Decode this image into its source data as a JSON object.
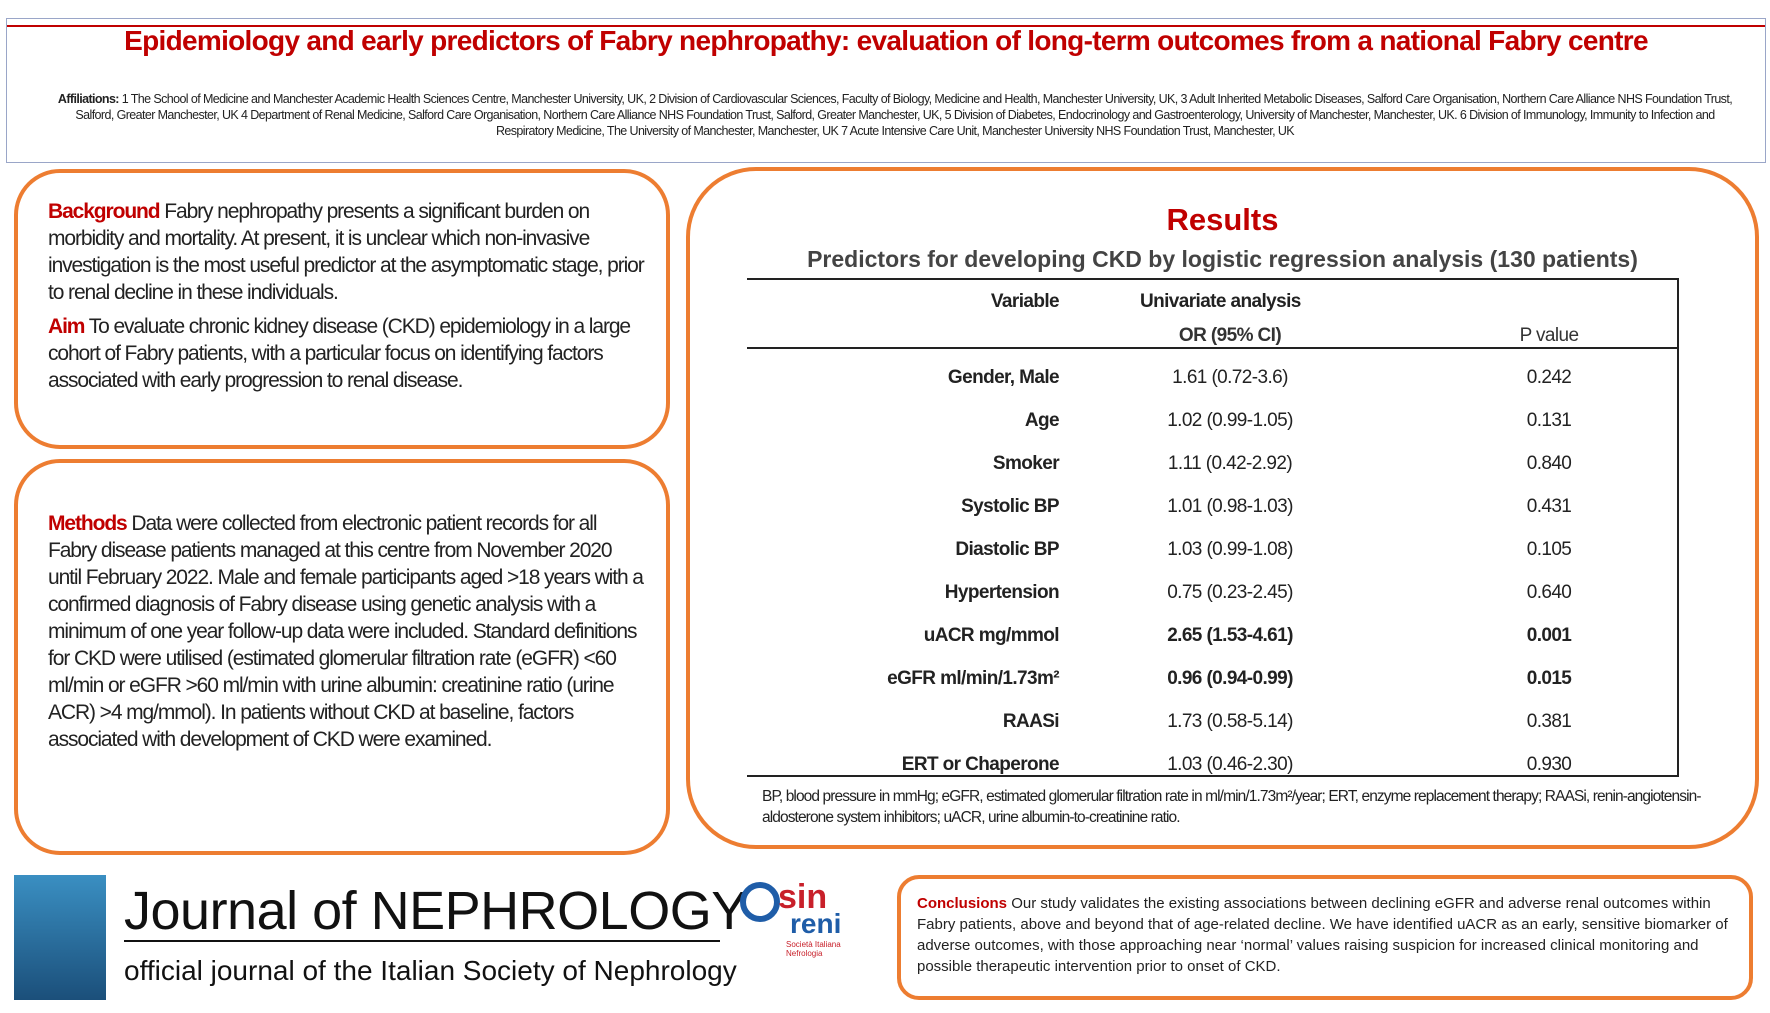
{
  "header": {
    "title": "Epidemiology and early predictors of Fabry nephropathy: evaluation of long-term outcomes from a national Fabry centre",
    "affiliations_label": "Affiliations:",
    "affiliations": "1 The School of Medicine and Manchester Academic Health Sciences Centre, Manchester University, UK, 2 Division of Cardiovascular Sciences, Faculty of Biology, Medicine and Health, Manchester University, UK, 3 Adult Inherited Metabolic Diseases, Salford Care Organisation, Northern Care Alliance NHS Foundation Trust, Salford, Greater Manchester, UK 4 Department of Renal Medicine, Salford Care Organisation, Northern Care Alliance NHS Foundation Trust, Salford, Greater Manchester, UK, 5 Division of Diabetes, Endocrinology and Gastroenterology, University of Manchester, Manchester, UK. 6 Division of Immunology, Immunity to Infection and Respiratory Medicine, The University of Manchester, Manchester, UK 7 Acute Intensive Care Unit, Manchester University NHS Foundation Trust, Manchester, UK"
  },
  "background": {
    "label": "Background",
    "text": "Fabry nephropathy presents a significant burden on morbidity and mortality. At present, it is unclear which non-invasive investigation is the most useful predictor at the asymptomatic stage, prior to renal decline in these individuals."
  },
  "aim": {
    "label": "Aim",
    "text": "To evaluate chronic kidney disease (CKD) epidemiology in a large cohort of Fabry patients, with a particular focus on identifying factors associated with early progression to renal disease."
  },
  "methods": {
    "label": "Methods",
    "text": "Data were collected from electronic patient records for all Fabry disease patients managed at this centre from November 2020 until February 2022. Male and female participants aged >18 years with a confirmed diagnosis of Fabry disease using genetic analysis with a minimum of one year follow-up data were included. Standard definitions for CKD were utilised (estimated glomerular filtration rate (eGFR) <60 ml/min or eGFR >60 ml/min with urine albumin: creatinine ratio (urine ACR) >4 mg/mmol). In patients without CKD at baseline, factors associated with development of CKD were examined."
  },
  "results": {
    "title": "Results",
    "caption": "Predictors for developing CKD by logistic regression analysis (130 patients)",
    "table": {
      "header": {
        "variable": "Variable",
        "group": "Univariate analysis",
        "or": "OR (95% CI)",
        "p": "P value"
      },
      "rows": [
        {
          "variable": "Gender, Male",
          "or": "1.61 (0.72-3.6)",
          "p": "0.242",
          "bold": false
        },
        {
          "variable": "Age",
          "or": "1.02 (0.99-1.05)",
          "p": "0.131",
          "bold": false
        },
        {
          "variable": "Smoker",
          "or": "1.11 (0.42-2.92)",
          "p": "0.840",
          "bold": false
        },
        {
          "variable": "Systolic BP",
          "or": "1.01 (0.98-1.03)",
          "p": "0.431",
          "bold": false
        },
        {
          "variable": "Diastolic BP",
          "or": "1.03 (0.99-1.08)",
          "p": "0.105",
          "bold": false
        },
        {
          "variable": "Hypertension",
          "or": "0.75 (0.23-2.45)",
          "p": "0.640",
          "bold": false
        },
        {
          "variable": "uACR mg/mmol",
          "or": "2.65 (1.53-4.61)",
          "p": "0.001",
          "bold": true
        },
        {
          "variable": "eGFR ml/min/1.73m²",
          "or": "0.96 (0.94-0.99)",
          "p": "0.015",
          "bold": true
        },
        {
          "variable": "RAASi",
          "or": "1.73 (0.58-5.14)",
          "p": "0.381",
          "bold": false
        },
        {
          "variable": "ERT or Chaperone",
          "or": "1.03 (0.46-2.30)",
          "p": "0.930",
          "bold": false
        }
      ]
    },
    "footnote": "BP, blood pressure in mmHg; eGFR, estimated glomerular filtration rate in ml/min/1.73m²/year; ERT, enzyme replacement therapy; RAASi, renin-angiotensin-aldosterone system inhibitors; uACR, urine albumin-to-creatinine ratio."
  },
  "journal": {
    "name": "Journal of NEPHROLOGY",
    "subtitle": "official journal of the Italian Society of Nephrology",
    "logo": "sin",
    "logo_sub": "reni",
    "logo_small": "Società Italiana Nefrologia"
  },
  "conclusions": {
    "label": "Conclusions",
    "text": "Our study validates the existing associations between declining eGFR and adverse renal outcomes within Fabry patients, above and beyond that of age-related decline. We have identified uACR as an early, sensitive biomarker of adverse outcomes, with those approaching near ‘normal’ values raising suspicion for increased clinical monitoring and possible therapeutic intervention prior to onset of CKD."
  }
}
